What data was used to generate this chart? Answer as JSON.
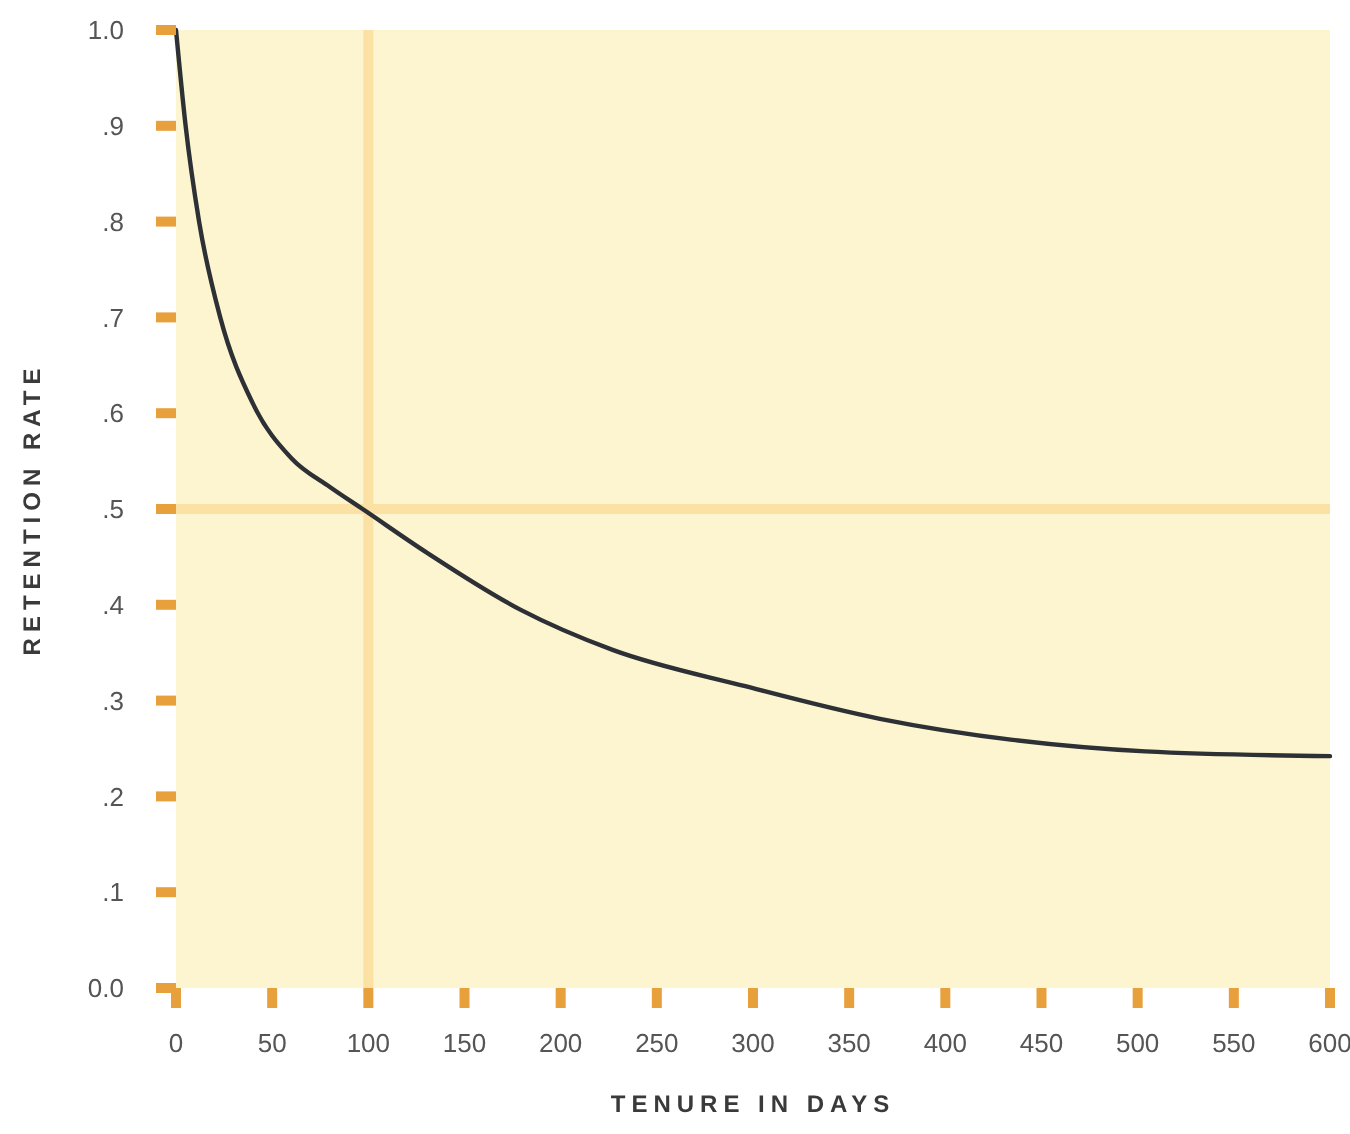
{
  "chart_data": {
    "type": "line",
    "xlabel": "TENURE IN DAYS",
    "ylabel": "RETENTION RATE",
    "xlim": [
      0,
      600
    ],
    "xticks": [
      0,
      50,
      100,
      150,
      200,
      250,
      300,
      350,
      400,
      450,
      500,
      550,
      600
    ],
    "ylim": [
      0,
      1
    ],
    "yticks": [
      {
        "value": 0,
        "label": "0.0"
      },
      {
        "value": 0.1,
        "label": ".1"
      },
      {
        "value": 0.2,
        "label": ".2"
      },
      {
        "value": 0.3,
        "label": ".3"
      },
      {
        "value": 0.4,
        "label": ".4"
      },
      {
        "value": 0.5,
        "label": ".5"
      },
      {
        "value": 0.6,
        "label": ".6"
      },
      {
        "value": 0.7,
        "label": ".7"
      },
      {
        "value": 0.8,
        "label": ".8"
      },
      {
        "value": 0.9,
        "label": ".9"
      },
      {
        "value": 1,
        "label": "1.0"
      }
    ],
    "grid": false,
    "marker": "none",
    "line_style": "solid",
    "series": [
      {
        "color": "#2d3035",
        "x": [
          0,
          5,
          12,
          23,
          40,
          60,
          80,
          97,
          130,
          179,
          227,
          296,
          366,
          435,
          504,
          600
        ],
        "values": [
          1.0,
          0.9,
          0.8,
          0.7,
          0.61,
          0.553,
          0.523,
          0.5,
          0.455,
          0.395,
          0.353,
          0.315,
          0.281,
          0.259,
          0.247,
          0.242
        ]
      }
    ],
    "ref_lines": [
      {
        "axis": "x",
        "value": 100,
        "color": "#fbe2a4"
      },
      {
        "axis": "y",
        "value": 0.5,
        "color": "#fbe2a4"
      }
    ]
  }
}
